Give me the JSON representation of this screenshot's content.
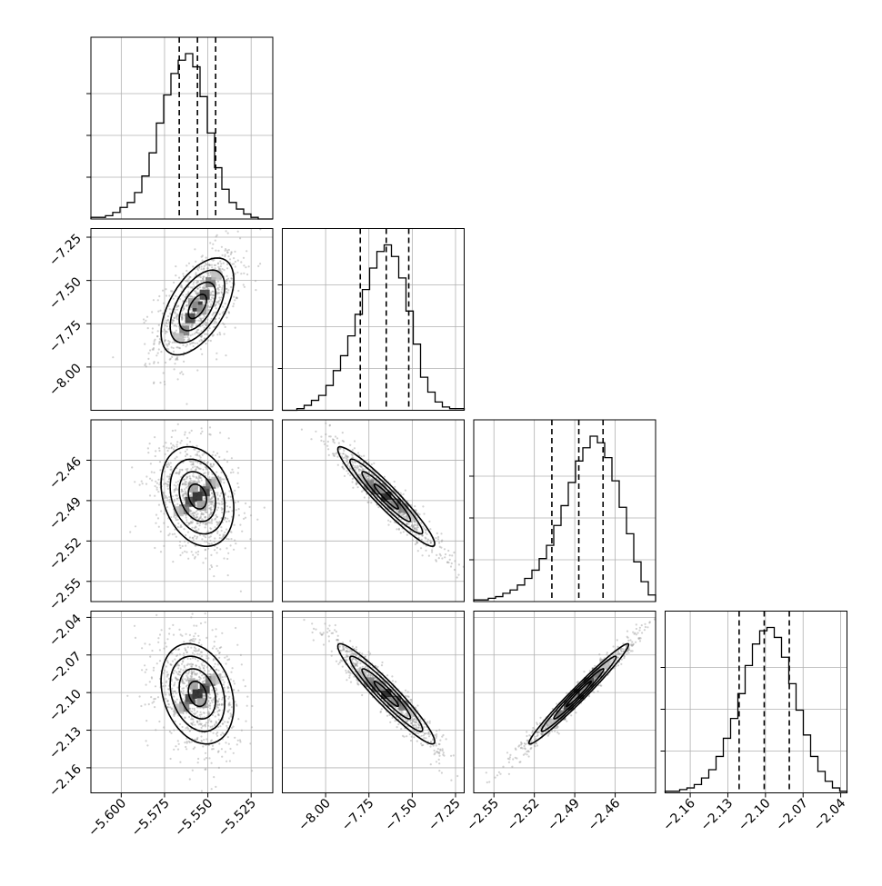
{
  "chart_data": {
    "type": "corner",
    "grid": true,
    "parameters": [
      {
        "range": [
          -5.6175,
          -5.5125
        ],
        "ticks": [
          -5.6,
          -5.575,
          -5.55,
          -5.525
        ],
        "tick_labels": [
          "−5.600",
          "−5.575",
          "−5.550",
          "−5.525"
        ],
        "median": -5.556,
        "q16": -5.5665,
        "q84": -5.5455
      },
      {
        "range": [
          -8.25,
          -7.2
        ],
        "ticks": [
          -8.0,
          -7.75,
          -7.5,
          -7.25
        ],
        "tick_labels": [
          "−8.00",
          "−7.75",
          "−7.50",
          "−7.25"
        ],
        "median": -7.65,
        "q16": -7.8,
        "q84": -7.52
      },
      {
        "range": [
          -2.565,
          -2.43
        ],
        "ticks": [
          -2.55,
          -2.52,
          -2.49,
          -2.46
        ],
        "tick_labels": [
          "−2.55",
          "−2.52",
          "−2.49",
          "−2.46"
        ],
        "median": -2.487,
        "q16": -2.507,
        "q84": -2.469
      },
      {
        "range": [
          -2.18,
          -2.035
        ],
        "ticks": [
          -2.16,
          -2.13,
          -2.1,
          -2.07,
          -2.04
        ],
        "tick_labels": [
          "−2.16",
          "−2.13",
          "−2.10",
          "−2.07",
          "−2.04"
        ],
        "median": -2.101,
        "q16": -2.121,
        "q84": -2.081
      }
    ],
    "histograms": [
      [
        1,
        1,
        2,
        4,
        7,
        10,
        16,
        26,
        40,
        58,
        75,
        88,
        96,
        100,
        92,
        74,
        52,
        31,
        18,
        10,
        6,
        3,
        1,
        0,
        0
      ],
      [
        0,
        0,
        1,
        3,
        6,
        9,
        15,
        24,
        33,
        45,
        58,
        73,
        86,
        96,
        100,
        93,
        80,
        60,
        40,
        20,
        11,
        5,
        2,
        1,
        1
      ],
      [
        1,
        1,
        2,
        3,
        5,
        7,
        10,
        14,
        19,
        26,
        34,
        46,
        58,
        72,
        85,
        93,
        100,
        96,
        87,
        73,
        57,
        41,
        24,
        12,
        4
      ],
      [
        1,
        1,
        2,
        3,
        5,
        9,
        14,
        22,
        33,
        45,
        60,
        77,
        90,
        98,
        100,
        94,
        82,
        66,
        50,
        35,
        22,
        13,
        7,
        3,
        1
      ]
    ],
    "correlations": [
      [
        1,
        0.55,
        -0.25,
        -0.25
      ],
      [
        0.55,
        1,
        -0.95,
        -0.95
      ],
      [
        -0.25,
        -0.95,
        1,
        0.98
      ],
      [
        -0.25,
        -0.95,
        0.98,
        1
      ]
    ],
    "sigma": [
      0.0105,
      0.14,
      0.0185,
      0.02
    ]
  }
}
